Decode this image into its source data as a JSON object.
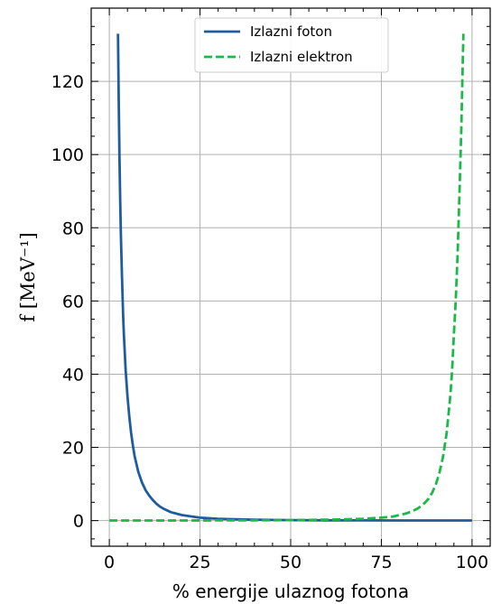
{
  "chart_data": {
    "type": "line",
    "title": "",
    "xlabel": "% energije ulaznog fotona",
    "ylabel": "f [MeV⁻¹]",
    "xlim": [
      -5,
      105
    ],
    "ylim": [
      -7,
      140
    ],
    "xticks": [
      0,
      25,
      50,
      75,
      100
    ],
    "yticks": [
      0,
      20,
      40,
      60,
      80,
      100,
      120
    ],
    "x_minor_step": 5,
    "y_minor_step": 5,
    "grid": true,
    "legend": {
      "placement": "top-center"
    },
    "series": [
      {
        "name": "Izlazni foton",
        "color": "#1f5c9e",
        "style": "solid",
        "x": [
          2.4,
          2.6,
          2.8,
          3,
          3.2,
          3.5,
          3.8,
          4,
          4.5,
          5,
          5.5,
          6,
          6.5,
          7,
          8,
          9,
          10,
          11,
          12,
          13,
          14,
          15,
          17,
          20,
          25,
          30,
          35,
          40,
          50,
          60,
          70,
          80,
          90,
          100
        ],
        "y": [
          133,
          115,
          100,
          88,
          78,
          66,
          56,
          51,
          41,
          34,
          28.5,
          24,
          20.5,
          17.5,
          13.3,
          10.4,
          8.3,
          6.8,
          5.6,
          4.6,
          3.8,
          3.2,
          2.3,
          1.5,
          0.8,
          0.5,
          0.35,
          0.25,
          0.12,
          0.08,
          0.05,
          0.03,
          0.02,
          0.02
        ]
      },
      {
        "name": "Izlazni elektron",
        "color": "#1db84a",
        "style": "dashed",
        "x": [
          0,
          10,
          20,
          30,
          40,
          50,
          60,
          65,
          70,
          75,
          78,
          80,
          82,
          84,
          85,
          86,
          87,
          88,
          89,
          90,
          91,
          92,
          93,
          94,
          94.5,
          95,
          95.5,
          96,
          96.5,
          97,
          97.2,
          97.4,
          97.6
        ],
        "y": [
          0.02,
          0.02,
          0.03,
          0.05,
          0.08,
          0.12,
          0.25,
          0.35,
          0.5,
          0.8,
          1.1,
          1.5,
          2,
          2.8,
          3.3,
          4,
          4.9,
          6,
          7.6,
          9.8,
          13,
          17.5,
          24,
          34,
          41,
          51,
          60,
          72,
          88,
          106,
          115,
          124,
          133
        ]
      }
    ]
  }
}
